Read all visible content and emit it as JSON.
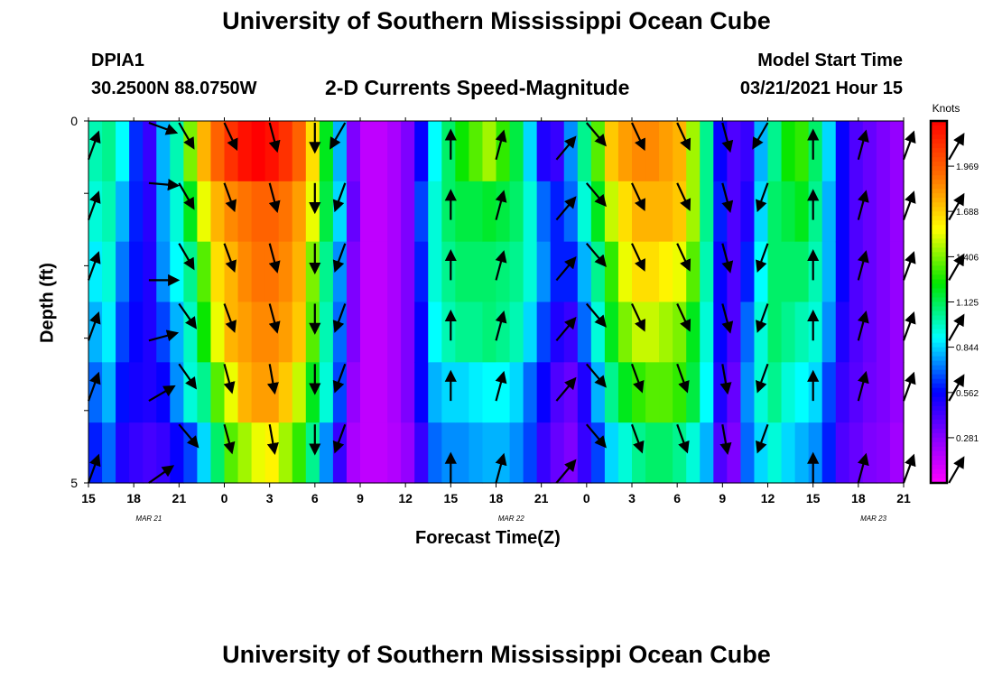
{
  "title_top": "University of Southern Mississippi Ocean Cube",
  "title_bottom": "University of Southern Mississippi Ocean Cube",
  "station": {
    "id": "DPIA1",
    "coords": "30.2500N 88.0750W"
  },
  "plot_title": "2-D Currents Speed-Magnitude",
  "model_start": {
    "label": "Model Start Time",
    "value": "03/21/2021 Hour 15"
  },
  "chart_data": {
    "type": "heatmap",
    "title": "2-D Currents Speed-Magnitude",
    "xlabel": "Forecast Time(Z)",
    "ylabel": "Depth (ft)",
    "x_tick_labels": [
      "15",
      "18",
      "21",
      "0",
      "3",
      "6",
      "9",
      "12",
      "15",
      "18",
      "21",
      "0",
      "3",
      "6",
      "9",
      "12",
      "15",
      "18",
      "21"
    ],
    "date_labels": [
      {
        "label": "MAR 21",
        "hour_index": 4
      },
      {
        "label": "MAR 22",
        "hour_index": 28
      },
      {
        "label": "MAR 23",
        "hour_index": 52
      }
    ],
    "y_tick_labels": [
      "0",
      "5"
    ],
    "ylim": [
      0,
      5
    ],
    "hours_total": 54,
    "colorbar": {
      "unit": "Knots",
      "ticks": [
        "1.969",
        "1.688",
        "1.406",
        "1.125",
        "0.844",
        "0.562",
        "0.281"
      ],
      "min": 0.0,
      "max": 2.25
    },
    "speed_profiles": [
      [
        1.0,
        0.95,
        0.88,
        0.8,
        0.7,
        0.6
      ],
      [
        1.05,
        1.0,
        0.95,
        0.88,
        0.8,
        0.7
      ],
      [
        0.9,
        0.8,
        0.72,
        0.65,
        0.58,
        0.5
      ],
      [
        0.62,
        0.6,
        0.58,
        0.55,
        0.52,
        0.45
      ],
      [
        0.45,
        0.48,
        0.5,
        0.5,
        0.5,
        0.42
      ],
      [
        0.8,
        0.78,
        0.75,
        0.65,
        0.55,
        0.45
      ],
      [
        1.0,
        0.95,
        0.9,
        0.8,
        0.75,
        0.55
      ],
      [
        1.4,
        1.2,
        1.05,
        0.98,
        0.95,
        0.65
      ],
      [
        1.75,
        1.55,
        1.35,
        1.25,
        1.05,
        0.85
      ],
      [
        1.95,
        1.75,
        1.65,
        1.55,
        1.35,
        1.1
      ],
      [
        2.1,
        1.85,
        1.75,
        1.75,
        1.55,
        1.35
      ],
      [
        2.2,
        1.9,
        1.85,
        1.8,
        1.75,
        1.45
      ],
      [
        2.25,
        1.95,
        1.9,
        1.85,
        1.8,
        1.55
      ],
      [
        2.2,
        1.95,
        1.9,
        1.85,
        1.8,
        1.6
      ],
      [
        2.1,
        1.9,
        1.85,
        1.8,
        1.7,
        1.45
      ],
      [
        1.95,
        1.8,
        1.75,
        1.7,
        1.5,
        1.3
      ],
      [
        1.65,
        1.55,
        1.4,
        1.35,
        1.2,
        1.05
      ],
      [
        1.2,
        1.15,
        1.05,
        1.0,
        0.95,
        0.75
      ],
      [
        0.8,
        0.85,
        0.75,
        0.7,
        0.65,
        0.45
      ],
      [
        0.3,
        0.35,
        0.3,
        0.3,
        0.25,
        0.2
      ],
      [
        0.15,
        0.15,
        0.15,
        0.15,
        0.15,
        0.15
      ],
      [
        0.15,
        0.15,
        0.15,
        0.15,
        0.15,
        0.15
      ],
      [
        0.2,
        0.2,
        0.2,
        0.2,
        0.2,
        0.18
      ],
      [
        0.3,
        0.3,
        0.3,
        0.3,
        0.3,
        0.25
      ],
      [
        0.55,
        0.65,
        0.6,
        0.55,
        0.55,
        0.45
      ],
      [
        0.9,
        0.95,
        0.95,
        0.9,
        0.8,
        0.7
      ],
      [
        1.1,
        1.1,
        1.05,
        1.0,
        0.85,
        0.75
      ],
      [
        1.25,
        1.15,
        1.1,
        1.05,
        0.85,
        0.75
      ],
      [
        1.35,
        1.15,
        1.1,
        1.05,
        0.88,
        0.78
      ],
      [
        1.45,
        1.18,
        1.1,
        1.08,
        0.9,
        0.8
      ],
      [
        1.3,
        1.15,
        1.08,
        1.05,
        0.9,
        0.8
      ],
      [
        1.15,
        1.1,
        1.05,
        1.0,
        0.85,
        0.75
      ],
      [
        0.85,
        0.95,
        0.95,
        0.85,
        0.7,
        0.65
      ],
      [
        0.5,
        0.7,
        0.75,
        0.65,
        0.55,
        0.45
      ],
      [
        0.45,
        0.6,
        0.6,
        0.5,
        0.4,
        0.35
      ],
      [
        0.75,
        0.7,
        0.6,
        0.45,
        0.35,
        0.3
      ],
      [
        1.05,
        0.95,
        0.8,
        0.7,
        0.5,
        0.45
      ],
      [
        1.35,
        1.2,
        1.05,
        0.95,
        0.8,
        0.65
      ],
      [
        1.7,
        1.5,
        1.3,
        1.2,
        1.05,
        0.85
      ],
      [
        1.8,
        1.65,
        1.55,
        1.4,
        1.2,
        0.95
      ],
      [
        1.85,
        1.75,
        1.65,
        1.5,
        1.3,
        1.05
      ],
      [
        1.85,
        1.75,
        1.65,
        1.5,
        1.35,
        1.1
      ],
      [
        1.8,
        1.75,
        1.6,
        1.45,
        1.35,
        1.1
      ],
      [
        1.75,
        1.7,
        1.55,
        1.4,
        1.3,
        1.05
      ],
      [
        1.45,
        1.45,
        1.35,
        1.2,
        1.15,
        0.95
      ],
      [
        1.05,
        1.05,
        1.0,
        0.95,
        0.9,
        0.8
      ],
      [
        0.55,
        0.6,
        0.55,
        0.55,
        0.5,
        0.4
      ],
      [
        0.4,
        0.4,
        0.4,
        0.4,
        0.35,
        0.3
      ],
      [
        0.45,
        0.5,
        0.6,
        0.7,
        0.75,
        0.7
      ],
      [
        0.8,
        0.85,
        0.9,
        0.95,
        0.95,
        0.85
      ],
      [
        1.05,
        1.1,
        1.1,
        1.1,
        1.05,
        0.95
      ],
      [
        1.25,
        1.15,
        1.1,
        1.05,
        0.95,
        0.85
      ],
      [
        1.3,
        1.2,
        1.1,
        1.0,
        0.9,
        0.8
      ],
      [
        1.1,
        1.05,
        1.0,
        0.95,
        0.85,
        0.75
      ],
      [
        0.85,
        0.8,
        0.8,
        0.75,
        0.65,
        0.6
      ],
      [
        0.55,
        0.55,
        0.55,
        0.5,
        0.45,
        0.4
      ],
      [
        0.4,
        0.4,
        0.4,
        0.4,
        0.38,
        0.35
      ],
      [
        0.35,
        0.35,
        0.35,
        0.35,
        0.33,
        0.3
      ],
      [
        0.3,
        0.3,
        0.3,
        0.3,
        0.3,
        0.28
      ],
      [
        0.25,
        0.25,
        0.25,
        0.25,
        0.25,
        0.22
      ]
    ],
    "vectors": {
      "hours": [
        0,
        4,
        6,
        9,
        12,
        15,
        17,
        24,
        27,
        31,
        33,
        36,
        39,
        42,
        45,
        48,
        51,
        54,
        57
      ],
      "depth_rows": [
        0,
        1,
        2,
        3,
        4,
        5
      ],
      "direction_deg": [
        [
          20,
          110,
          150,
          155,
          165,
          180,
          210,
          0,
          15,
          40,
          140,
          155,
          155,
          165,
          210,
          0,
          15,
          20,
          30
        ],
        [
          20,
          95,
          150,
          160,
          165,
          180,
          200,
          0,
          15,
          40,
          140,
          155,
          155,
          165,
          200,
          0,
          15,
          20,
          30
        ],
        [
          20,
          90,
          150,
          160,
          165,
          180,
          200,
          0,
          15,
          40,
          140,
          155,
          155,
          165,
          200,
          0,
          15,
          20,
          30
        ],
        [
          20,
          75,
          145,
          160,
          165,
          180,
          200,
          0,
          15,
          40,
          140,
          155,
          155,
          165,
          200,
          0,
          15,
          20,
          30
        ],
        [
          20,
          60,
          145,
          165,
          170,
          180,
          200,
          0,
          15,
          40,
          140,
          160,
          160,
          170,
          200,
          0,
          15,
          20,
          30
        ],
        [
          20,
          55,
          140,
          165,
          170,
          180,
          200,
          0,
          15,
          40,
          140,
          160,
          160,
          170,
          200,
          0,
          15,
          20,
          30
        ]
      ]
    }
  }
}
